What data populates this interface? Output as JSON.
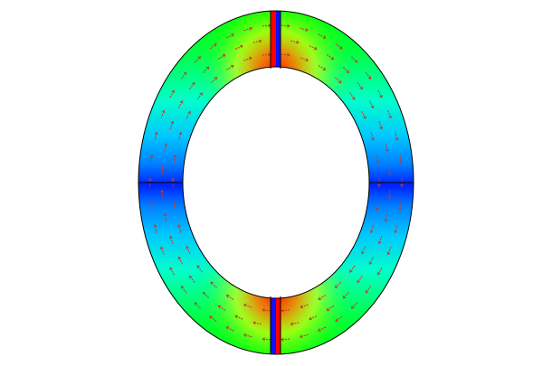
{
  "figure": {
    "kind": "ring-field-plot",
    "background_color": "#ffffff",
    "outline_color": "#000000",
    "arrow_color": "#c0392b",
    "colormap": [
      "#0000ff",
      "#0080ff",
      "#00ffff",
      "#00ff80",
      "#00ff00",
      "#80ff00",
      "#ffff00",
      "#ff8000",
      "#ff0000"
    ],
    "split_line_colors": [
      "#ff0000",
      "#0000ff"
    ],
    "legend_shown": false,
    "axes_shown": false
  }
}
